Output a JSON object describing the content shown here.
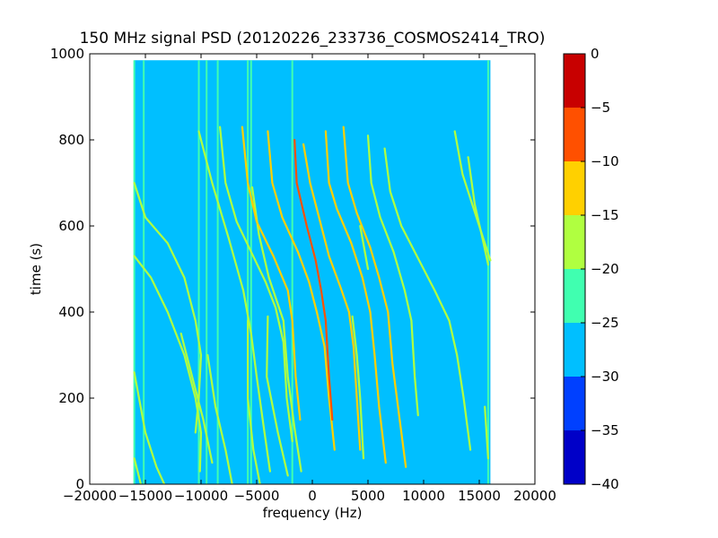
{
  "chart_data": {
    "type": "heatmap",
    "title": "150 MHz signal PSD (20120226_233736_COSMOS2414_TRO)",
    "xlabel": "frequency (Hz)",
    "ylabel": "time (s)",
    "xlim": [
      -20000,
      20000
    ],
    "ylim": [
      0,
      1000
    ],
    "xticks": [
      -20000,
      -15000,
      -10000,
      -5000,
      0,
      5000,
      10000,
      15000,
      20000
    ],
    "xtick_labels": [
      "−20000",
      "−15000",
      "−10000",
      "−5000",
      "0",
      "5000",
      "10000",
      "15000",
      "20000"
    ],
    "yticks": [
      0,
      200,
      400,
      600,
      800,
      1000
    ],
    "ytick_labels": [
      "0",
      "200",
      "400",
      "600",
      "800",
      "1000"
    ],
    "data_extent": {
      "x": [
        -16000,
        16000
      ],
      "y": [
        0,
        985
      ]
    },
    "background_level_dB": -27.5,
    "colorbar": {
      "levels": [
        -40,
        -35,
        -30,
        -25,
        -20,
        -15,
        -10,
        -5,
        0
      ],
      "tick_labels": [
        "−40",
        "−35",
        "−30",
        "−25",
        "−20",
        "−15",
        "−10",
        "−5",
        "0"
      ],
      "colors": [
        "#0000c8",
        "#0040ff",
        "#00bfff",
        "#40ffb0",
        "#b0ff40",
        "#ffd000",
        "#ff5000",
        "#c80000"
      ]
    },
    "vertical_lines_hz": [
      {
        "f": -16000,
        "level": -22.5
      },
      {
        "f": -15150,
        "level": -22.5
      },
      {
        "f": -10200,
        "level": -22.5
      },
      {
        "f": -9500,
        "level": -22.5
      },
      {
        "f": -8500,
        "level": -22.5
      },
      {
        "f": -5800,
        "level": -22.5
      },
      {
        "f": -5500,
        "level": -22.5
      },
      {
        "f": -1800,
        "level": -22.5
      },
      {
        "f": 15800,
        "level": -22.5
      }
    ],
    "series": [
      {
        "points": [
          [
            -16000,
            700
          ],
          [
            -15000,
            620
          ],
          [
            -13000,
            560
          ],
          [
            -11500,
            480
          ],
          [
            -10500,
            380
          ],
          [
            -10000,
            300
          ],
          [
            -10200,
            200
          ],
          [
            -10500,
            120
          ]
        ],
        "level": -17.5
      },
      {
        "points": [
          [
            -16000,
            530
          ],
          [
            -14500,
            480
          ],
          [
            -13000,
            400
          ],
          [
            -11500,
            300
          ],
          [
            -10500,
            200
          ],
          [
            -10000,
            120
          ],
          [
            -10100,
            30
          ]
        ],
        "level": -17.5
      },
      {
        "points": [
          [
            -16000,
            260
          ],
          [
            -15000,
            120
          ],
          [
            -14000,
            40
          ],
          [
            -13300,
            0
          ]
        ],
        "level": -17.5
      },
      {
        "points": [
          [
            -16000,
            60
          ],
          [
            -15400,
            0
          ]
        ],
        "level": -17.5
      },
      {
        "points": [
          [
            -10200,
            820
          ],
          [
            -9000,
            700
          ],
          [
            -7500,
            570
          ],
          [
            -6200,
            450
          ],
          [
            -5500,
            350
          ],
          [
            -5000,
            250
          ],
          [
            -4300,
            120
          ],
          [
            -3800,
            30
          ]
        ],
        "level": -17.5
      },
      {
        "points": [
          [
            -8300,
            830
          ],
          [
            -7800,
            700
          ],
          [
            -6800,
            610
          ],
          [
            -5500,
            540
          ],
          [
            -4200,
            470
          ],
          [
            -3300,
            410
          ],
          [
            -2600,
            330
          ],
          [
            -2300,
            200
          ],
          [
            -1800,
            100
          ]
        ],
        "level": -17.5
      },
      {
        "points": [
          [
            -5800,
            380
          ],
          [
            -5800,
            200
          ],
          [
            -5300,
            80
          ],
          [
            -4700,
            0
          ]
        ],
        "level": -17.5
      },
      {
        "points": [
          [
            -5400,
            690
          ],
          [
            -4800,
            580
          ],
          [
            -3900,
            480
          ],
          [
            -2600,
            380
          ],
          [
            -2200,
            250
          ],
          [
            -1600,
            130
          ],
          [
            -1000,
            30
          ]
        ],
        "level": -17.5
      },
      {
        "points": [
          [
            -4000,
            390
          ],
          [
            -4100,
            250
          ],
          [
            -3100,
            120
          ],
          [
            -2200,
            20
          ]
        ],
        "level": -17.5
      },
      {
        "points": [
          [
            -6300,
            830
          ],
          [
            -5800,
            700
          ],
          [
            -5000,
            610
          ],
          [
            -3500,
            530
          ],
          [
            -2200,
            450
          ],
          [
            -1800,
            380
          ],
          [
            -1500,
            250
          ],
          [
            -1100,
            150
          ]
        ],
        "level": -12.5
      },
      {
        "points": [
          [
            -4000,
            820
          ],
          [
            -3600,
            700
          ],
          [
            -2700,
            620
          ],
          [
            -1300,
            540
          ],
          [
            -300,
            470
          ],
          [
            400,
            400
          ],
          [
            1100,
            320
          ],
          [
            1500,
            200
          ],
          [
            2000,
            80
          ]
        ],
        "level": -12.5
      },
      {
        "points": [
          [
            -1600,
            800
          ],
          [
            -1400,
            700
          ],
          [
            -500,
            600
          ],
          [
            300,
            520
          ],
          [
            800,
            450
          ],
          [
            1200,
            380
          ],
          [
            1500,
            250
          ],
          [
            1800,
            150
          ]
        ],
        "level": -7.5
      },
      {
        "points": [
          [
            -800,
            790
          ],
          [
            -200,
            700
          ],
          [
            700,
            610
          ],
          [
            1500,
            530
          ],
          [
            2500,
            460
          ],
          [
            3300,
            400
          ],
          [
            3700,
            320
          ],
          [
            4000,
            200
          ],
          [
            4300,
            80
          ]
        ],
        "level": -12.5
      },
      {
        "points": [
          [
            1200,
            820
          ],
          [
            1500,
            700
          ],
          [
            2200,
            640
          ],
          [
            3500,
            560
          ],
          [
            4500,
            480
          ],
          [
            5200,
            400
          ],
          [
            5600,
            300
          ],
          [
            6000,
            180
          ],
          [
            6600,
            50
          ]
        ],
        "level": -12.5
      },
      {
        "points": [
          [
            2800,
            830
          ],
          [
            3200,
            700
          ],
          [
            4000,
            630
          ],
          [
            5200,
            550
          ],
          [
            6000,
            480
          ],
          [
            6800,
            400
          ],
          [
            7200,
            280
          ],
          [
            7800,
            160
          ],
          [
            8400,
            40
          ]
        ],
        "level": -12.5
      },
      {
        "points": [
          [
            5000,
            810
          ],
          [
            5300,
            700
          ],
          [
            6100,
            620
          ],
          [
            7300,
            540
          ],
          [
            8300,
            450
          ],
          [
            8900,
            380
          ],
          [
            9200,
            250
          ],
          [
            9500,
            160
          ]
        ],
        "level": -17.5
      },
      {
        "points": [
          [
            6500,
            780
          ],
          [
            7000,
            680
          ],
          [
            8000,
            600
          ],
          [
            9600,
            520
          ],
          [
            11000,
            450
          ],
          [
            12300,
            380
          ],
          [
            13000,
            300
          ],
          [
            13600,
            200
          ],
          [
            14200,
            80
          ]
        ],
        "level": -17.5
      },
      {
        "points": [
          [
            12800,
            820
          ],
          [
            13500,
            720
          ],
          [
            14500,
            640
          ],
          [
            15500,
            560
          ],
          [
            16000,
            520
          ]
        ],
        "level": -17.5
      },
      {
        "points": [
          [
            14000,
            760
          ],
          [
            14600,
            650
          ],
          [
            15300,
            570
          ],
          [
            15800,
            510
          ]
        ],
        "level": -17.5
      },
      {
        "points": [
          [
            3600,
            390
          ],
          [
            4000,
            300
          ],
          [
            4300,
            200
          ],
          [
            4600,
            60
          ]
        ],
        "level": -17.5
      },
      {
        "points": [
          [
            -11800,
            350
          ],
          [
            -10800,
            250
          ],
          [
            -9800,
            150
          ],
          [
            -9000,
            50
          ]
        ],
        "level": -17.5
      },
      {
        "points": [
          [
            -9400,
            300
          ],
          [
            -8700,
            180
          ],
          [
            -7800,
            80
          ],
          [
            -7200,
            0
          ]
        ],
        "level": -17.5
      },
      {
        "points": [
          [
            4300,
            600
          ],
          [
            5000,
            500
          ]
        ],
        "level": -17.5
      },
      {
        "points": [
          [
            15500,
            180
          ],
          [
            15800,
            60
          ]
        ],
        "level": -17.5
      }
    ]
  }
}
